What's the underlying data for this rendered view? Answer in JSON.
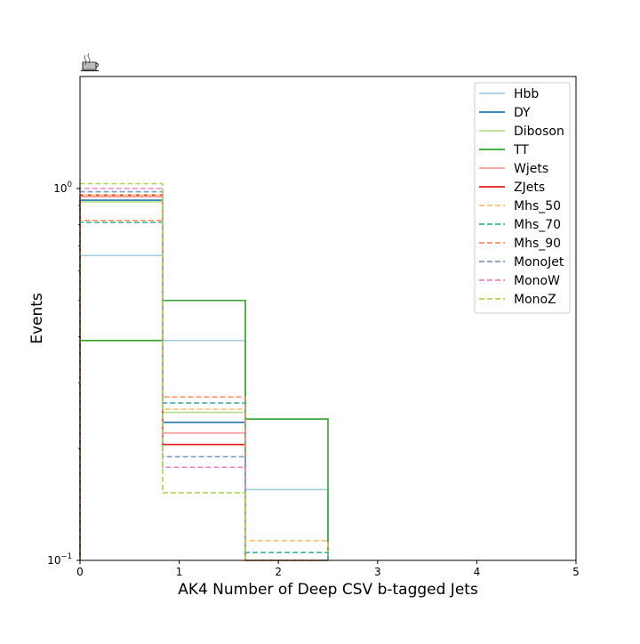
{
  "chart_data": {
    "type": "line",
    "drawstyle": "steps",
    "title": "",
    "xlabel": "AK4 Number of Deep CSV b-tagged Jets",
    "ylabel": "Events",
    "xlim": [
      0,
      5
    ],
    "ylim": [
      0.1,
      2.0
    ],
    "yscale": "log",
    "grid": false,
    "legend_position": "top-right",
    "x_ticks": [
      "0",
      "1",
      "2",
      "3",
      "4",
      "5"
    ],
    "y_ticks": [
      {
        "value": 0.1,
        "base": "10",
        "exp": "−1"
      },
      {
        "value": 1.0,
        "base": "10",
        "exp": "0"
      }
    ],
    "bin_edges": [
      0,
      0.833,
      1.667,
      2.5
    ],
    "logo_icon": "coffee-cup-icon",
    "series": [
      {
        "name": "Hbb",
        "color": "#a6cee3",
        "dashed": false,
        "values": [
          0.66,
          0.39,
          0.155
        ]
      },
      {
        "name": "DY",
        "color": "#1f78b4",
        "dashed": false,
        "values": [
          0.93,
          0.235,
          0.0
        ]
      },
      {
        "name": "Diboson",
        "color": "#b2df8a",
        "dashed": false,
        "values": [
          0.92,
          0.25,
          0.0
        ]
      },
      {
        "name": "TT",
        "color": "#33a02c",
        "dashed": false,
        "values": [
          0.39,
          0.5,
          0.24
        ]
      },
      {
        "name": "Wjets",
        "color": "#fb9a99",
        "dashed": false,
        "values": [
          0.95,
          0.22,
          0.0
        ]
      },
      {
        "name": "ZJets",
        "color": "#e31a1c",
        "dashed": false,
        "values": [
          0.96,
          0.205,
          0.0
        ]
      },
      {
        "name": "Mhs_50",
        "color": "#fdbf6f",
        "dashed": true,
        "values": [
          0.96,
          0.255,
          0.113
        ]
      },
      {
        "name": "Mhs_70",
        "color": "#40b0a0",
        "dashed": true,
        "values": [
          0.81,
          0.265,
          0.105
        ]
      },
      {
        "name": "Mhs_90",
        "color": "#fc8d62",
        "dashed": true,
        "values": [
          0.82,
          0.275,
          0.0
        ]
      },
      {
        "name": "MonoJet",
        "color": "#7f9cc8",
        "dashed": true,
        "values": [
          0.98,
          0.19,
          0.0
        ]
      },
      {
        "name": "MonoW",
        "color": "#e78ac3",
        "dashed": true,
        "values": [
          1.0,
          0.178,
          0.0
        ]
      },
      {
        "name": "MonoZ",
        "color": "#a6d854",
        "dashed": true,
        "values": [
          1.03,
          0.152,
          0.0
        ]
      }
    ]
  }
}
